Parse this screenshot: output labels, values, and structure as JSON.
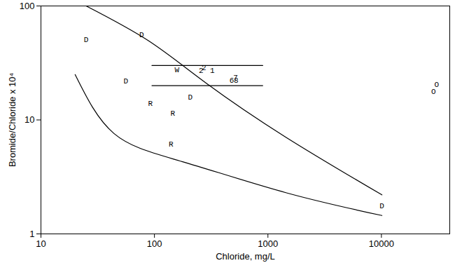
{
  "chart_data": {
    "type": "scatter",
    "x_label": "Chloride, mg/L",
    "y_label": "Bromide/Chloride x 10⁴",
    "log": true,
    "grid": false,
    "color": "#000000",
    "xlim": [
      10,
      40000
    ],
    "xticks": [
      10,
      100,
      1000,
      10000
    ],
    "ylim": [
      1,
      100
    ],
    "yticks": [
      1,
      10,
      100
    ],
    "series": [
      {
        "name": "D",
        "type": "text",
        "x": [
          25,
          77,
          56,
          207,
          10100
        ],
        "values": [
          51,
          56,
          22,
          15.8,
          1.77
        ]
      },
      {
        "name": "R",
        "type": "text",
        "x": [
          92,
          145,
          140
        ],
        "values": [
          14,
          11.4,
          6.1
        ]
      },
      {
        "name": "W",
        "type": "text",
        "x": [
          158
        ],
        "values": [
          27.7
        ]
      },
      {
        "name": "2",
        "type": "text",
        "x": [
          273,
          258
        ],
        "values": [
          28.6,
          27
        ]
      },
      {
        "name": "1",
        "type": "text",
        "x": [
          324
        ],
        "values": [
          27.3
        ]
      },
      {
        "name": "7",
        "type": "text",
        "x": [
          518
        ],
        "values": [
          23.7
        ]
      },
      {
        "name": "6",
        "type": "text",
        "x": [
          480
        ],
        "values": [
          22.2
        ]
      },
      {
        "name": "8",
        "type": "text",
        "x": [
          525
        ],
        "values": [
          22.2
        ]
      },
      {
        "name": "O",
        "type": "text",
        "x": [
          28800,
          30700
        ],
        "values": [
          17.7,
          20.4
        ]
      },
      {
        "type": "line",
        "line_style": "solid",
        "x": [
          25,
          88,
          288,
          1440,
          10100
        ],
        "values": [
          100,
          49.7,
          20.9,
          7.05,
          2.2
        ]
      },
      {
        "type": "line",
        "line_style": "solid",
        "x": [
          20,
          44,
          177,
          1440,
          10100
        ],
        "values": [
          25,
          7.6,
          4.3,
          2.3,
          1.45
        ]
      },
      {
        "type": "line",
        "line_style": "solid",
        "x": [
          95,
          900
        ],
        "values": [
          30,
          30
        ]
      },
      {
        "type": "line",
        "line_style": "solid",
        "x": [
          95,
          900
        ],
        "values": [
          20,
          20
        ]
      }
    ]
  }
}
